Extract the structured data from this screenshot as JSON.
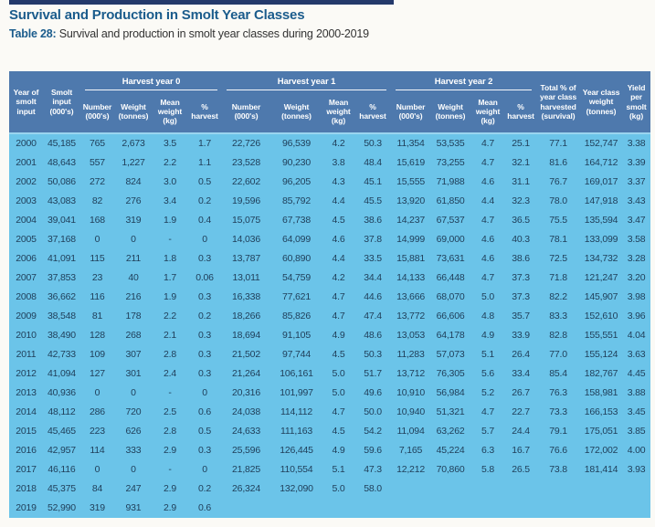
{
  "page": {
    "title": "Survival and Production in Smolt Year Classes",
    "table_label": "Table 28:",
    "table_caption": " Survival and production in smolt year classes during 2000-2019"
  },
  "colors": {
    "title_blue": "#1b5c8c",
    "header_background": "#4e79ad",
    "header_text": "#ffffff",
    "body_background": "#6bc4e9",
    "body_text": "#1f3d58",
    "top_strip_navy": "#24396b",
    "page_background": "#fbfaf6"
  },
  "table": {
    "col_headers": {
      "year": "Year of smolt input",
      "smolt_input": "Smolt input (000's)",
      "groups": [
        "Harvest year 0",
        "Harvest year 1",
        "Harvest year 2"
      ],
      "sub": [
        "Number (000's)",
        "Weight (tonnes)",
        "Mean weight (kg)",
        "% harvest"
      ],
      "total_pct": "Total % of year class harvested (survival)",
      "year_class_weight": "Year class weight (tonnes)",
      "yield_per_smolt": "Yield per smolt (kg)"
    },
    "rows": [
      [
        "2000",
        "45,185",
        "765",
        "2,673",
        "3.5",
        "1.7",
        "22,726",
        "96,539",
        "4.2",
        "50.3",
        "11,354",
        "53,535",
        "4.7",
        "25.1",
        "77.1",
        "152,747",
        "3.38"
      ],
      [
        "2001",
        "48,643",
        "557",
        "1,227",
        "2.2",
        "1.1",
        "23,528",
        "90,230",
        "3.8",
        "48.4",
        "15,619",
        "73,255",
        "4.7",
        "32.1",
        "81.6",
        "164,712",
        "3.39"
      ],
      [
        "2002",
        "50,086",
        "272",
        "824",
        "3.0",
        "0.5",
        "22,602",
        "96,205",
        "4.3",
        "45.1",
        "15,555",
        "71,988",
        "4.6",
        "31.1",
        "76.7",
        "169,017",
        "3.37"
      ],
      [
        "2003",
        "43,083",
        "82",
        "276",
        "3.4",
        "0.2",
        "19,596",
        "85,792",
        "4.4",
        "45.5",
        "13,920",
        "61,850",
        "4.4",
        "32.3",
        "78.0",
        "147,918",
        "3.43"
      ],
      [
        "2004",
        "39,041",
        "168",
        "319",
        "1.9",
        "0.4",
        "15,075",
        "67,738",
        "4.5",
        "38.6",
        "14,237",
        "67,537",
        "4.7",
        "36.5",
        "75.5",
        "135,594",
        "3.47"
      ],
      [
        "2005",
        "37,168",
        "0",
        "0",
        "-",
        "0",
        "14,036",
        "64,099",
        "4.6",
        "37.8",
        "14,999",
        "69,000",
        "4.6",
        "40.3",
        "78.1",
        "133,099",
        "3.58"
      ],
      [
        "2006",
        "41,091",
        "115",
        "211",
        "1.8",
        "0.3",
        "13,787",
        "60,890",
        "4.4",
        "33.5",
        "15,881",
        "73,631",
        "4.6",
        "38.6",
        "72.5",
        "134,732",
        "3.28"
      ],
      [
        "2007",
        "37,853",
        "23",
        "40",
        "1.7",
        "0.06",
        "13,011",
        "54,759",
        "4.2",
        "34.4",
        "14,133",
        "66,448",
        "4.7",
        "37.3",
        "71.8",
        "121,247",
        "3.20"
      ],
      [
        "2008",
        "36,662",
        "116",
        "216",
        "1.9",
        "0.3",
        "16,338",
        "77,621",
        "4.7",
        "44.6",
        "13,666",
        "68,070",
        "5.0",
        "37.3",
        "82.2",
        "145,907",
        "3.98"
      ],
      [
        "2009",
        "38,548",
        "81",
        "178",
        "2.2",
        "0.2",
        "18,266",
        "85,826",
        "4.7",
        "47.4",
        "13,772",
        "66,606",
        "4.8",
        "35.7",
        "83.3",
        "152,610",
        "3.96"
      ],
      [
        "2010",
        "38,490",
        "128",
        "268",
        "2.1",
        "0.3",
        "18,694",
        "91,105",
        "4.9",
        "48.6",
        "13,053",
        "64,178",
        "4.9",
        "33.9",
        "82.8",
        "155,551",
        "4.04"
      ],
      [
        "2011",
        "42,733",
        "109",
        "307",
        "2.8",
        "0.3",
        "21,502",
        "97,744",
        "4.5",
        "50.3",
        "11,283",
        "57,073",
        "5.1",
        "26.4",
        "77.0",
        "155,124",
        "3.63"
      ],
      [
        "2012",
        "41,094",
        "127",
        "301",
        "2.4",
        "0.3",
        "21,264",
        "106,161",
        "5.0",
        "51.7",
        "13,712",
        "76,305",
        "5.6",
        "33.4",
        "85.4",
        "182,767",
        "4.45"
      ],
      [
        "2013",
        "40,936",
        "0",
        "0",
        "-",
        "0",
        "20,316",
        "101,997",
        "5.0",
        "49.6",
        "10,910",
        "56,984",
        "5.2",
        "26.7",
        "76.3",
        "158,981",
        "3.88"
      ],
      [
        "2014",
        "48,112",
        "286",
        "720",
        "2.5",
        "0.6",
        "24,038",
        "114,112",
        "4.7",
        "50.0",
        "10,940",
        "51,321",
        "4.7",
        "22.7",
        "73.3",
        "166,153",
        "3.45"
      ],
      [
        "2015",
        "45,465",
        "223",
        "626",
        "2.8",
        "0.5",
        "24,633",
        "111,163",
        "4.5",
        "54.2",
        "11,094",
        "63,262",
        "5.7",
        "24.4",
        "79.1",
        "175,051",
        "3.85"
      ],
      [
        "2016",
        "42,957",
        "114",
        "333",
        "2.9",
        "0.3",
        "25,596",
        "126,445",
        "4.9",
        "59.6",
        "7,165",
        "45,224",
        "6.3",
        "16.7",
        "76.6",
        "172,002",
        "4.00"
      ],
      [
        "2017",
        "46,116",
        "0",
        "0",
        "-",
        "0",
        "21,825",
        "110,554",
        "5.1",
        "47.3",
        "12,212",
        "70,860",
        "5.8",
        "26.5",
        "73.8",
        "181,414",
        "3.93"
      ],
      [
        "2018",
        "45,375",
        "84",
        "247",
        "2.9",
        "0.2",
        "26,324",
        "132,090",
        "5.0",
        "58.0",
        "",
        "",
        "",
        "",
        "",
        "",
        ""
      ],
      [
        "2019",
        "52,990",
        "319",
        "931",
        "2.9",
        "0.6",
        "",
        "",
        "",
        "",
        "",
        "",
        "",
        "",
        "",
        "",
        ""
      ]
    ]
  }
}
